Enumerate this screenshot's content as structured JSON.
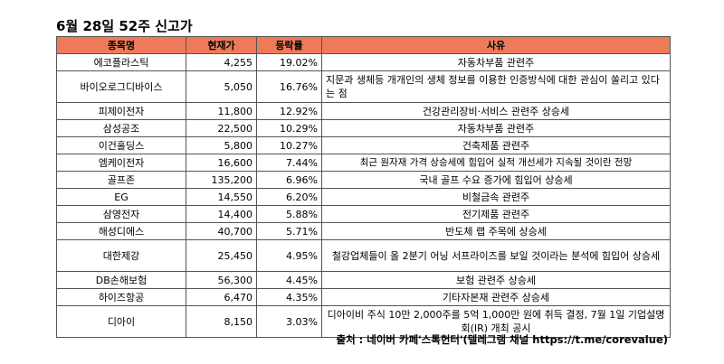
{
  "title": "6월 28일 52주 신고가",
  "headers": [
    "종목명",
    "현재가",
    "등락률",
    "사유"
  ],
  "rows": [
    {
      "name": "에코플라스틱",
      "price": "4,255",
      "change": "19.02%",
      "reason": "자동차부품 관련주"
    },
    {
      "name": "바이오로그디바이스",
      "price": "5,050",
      "change": "16.76%",
      "reason": "지문과 생체등 개개인의 생체 정보를 이용한 인증방식에 대한 관심이 쏠리고 있다는 점"
    },
    {
      "name": "피제이전자",
      "price": "11,800",
      "change": "12.92%",
      "reason": "건강관리장비·서비스 관련주 상승세"
    },
    {
      "name": "삼성공조",
      "price": "22,500",
      "change": "10.29%",
      "reason": "자동차부품 관련주"
    },
    {
      "name": "이건홀딩스",
      "price": "5,800",
      "change": "10.27%",
      "reason": "건축제품 관련주"
    },
    {
      "name": "엠케이전자",
      "price": "16,600",
      "change": "7.44%",
      "reason": "최근 원자재 가격 상승세에 힘입어 실적 개선세가 지속될 것이란 전망"
    },
    {
      "name": "골프존",
      "price": "135,200",
      "change": "6.96%",
      "reason": "국내 골프 수요 증가에 힘입어 상승세"
    },
    {
      "name": "EG",
      "price": "14,550",
      "change": "6.20%",
      "reason": "비철금속 관련주"
    },
    {
      "name": "삼영전자",
      "price": "14,400",
      "change": "5.88%",
      "reason": "전기제품 관련주"
    },
    {
      "name": "해성디에스",
      "price": "40,700",
      "change": "5.71%",
      "reason": "반도체 랩 주목에 상승세"
    },
    {
      "name": "대한제강",
      "price": "25,450",
      "change": "4.95%",
      "reason": "철강업체들이 올 2분기 어닝 서프라이즈를 보일 것이라는 분석에 힘입어 상승세"
    },
    {
      "name": "DB손해보험",
      "price": "56,300",
      "change": "4.45%",
      "reason": "보험 관련주 상승세"
    },
    {
      "name": "하이즈항공",
      "price": "6,470",
      "change": "4.35%",
      "reason": "기타자본재 관련주 상승세"
    },
    {
      "name": "디아이",
      "price": "8,150",
      "change": "3.03%",
      "reason": "디아이비 주식 10만 2,000주를 5억 1,000만 원에 취득 결정, 7월 1일 기업설명회(IR) 개최 공시"
    }
  ],
  "source": "출처 : 네이버 카페'스톡헌터'(텔레그램 채널 https://t.me/corevalue)",
  "colors": {
    "header_bg": "#ed7b59",
    "border": "#555555"
  }
}
